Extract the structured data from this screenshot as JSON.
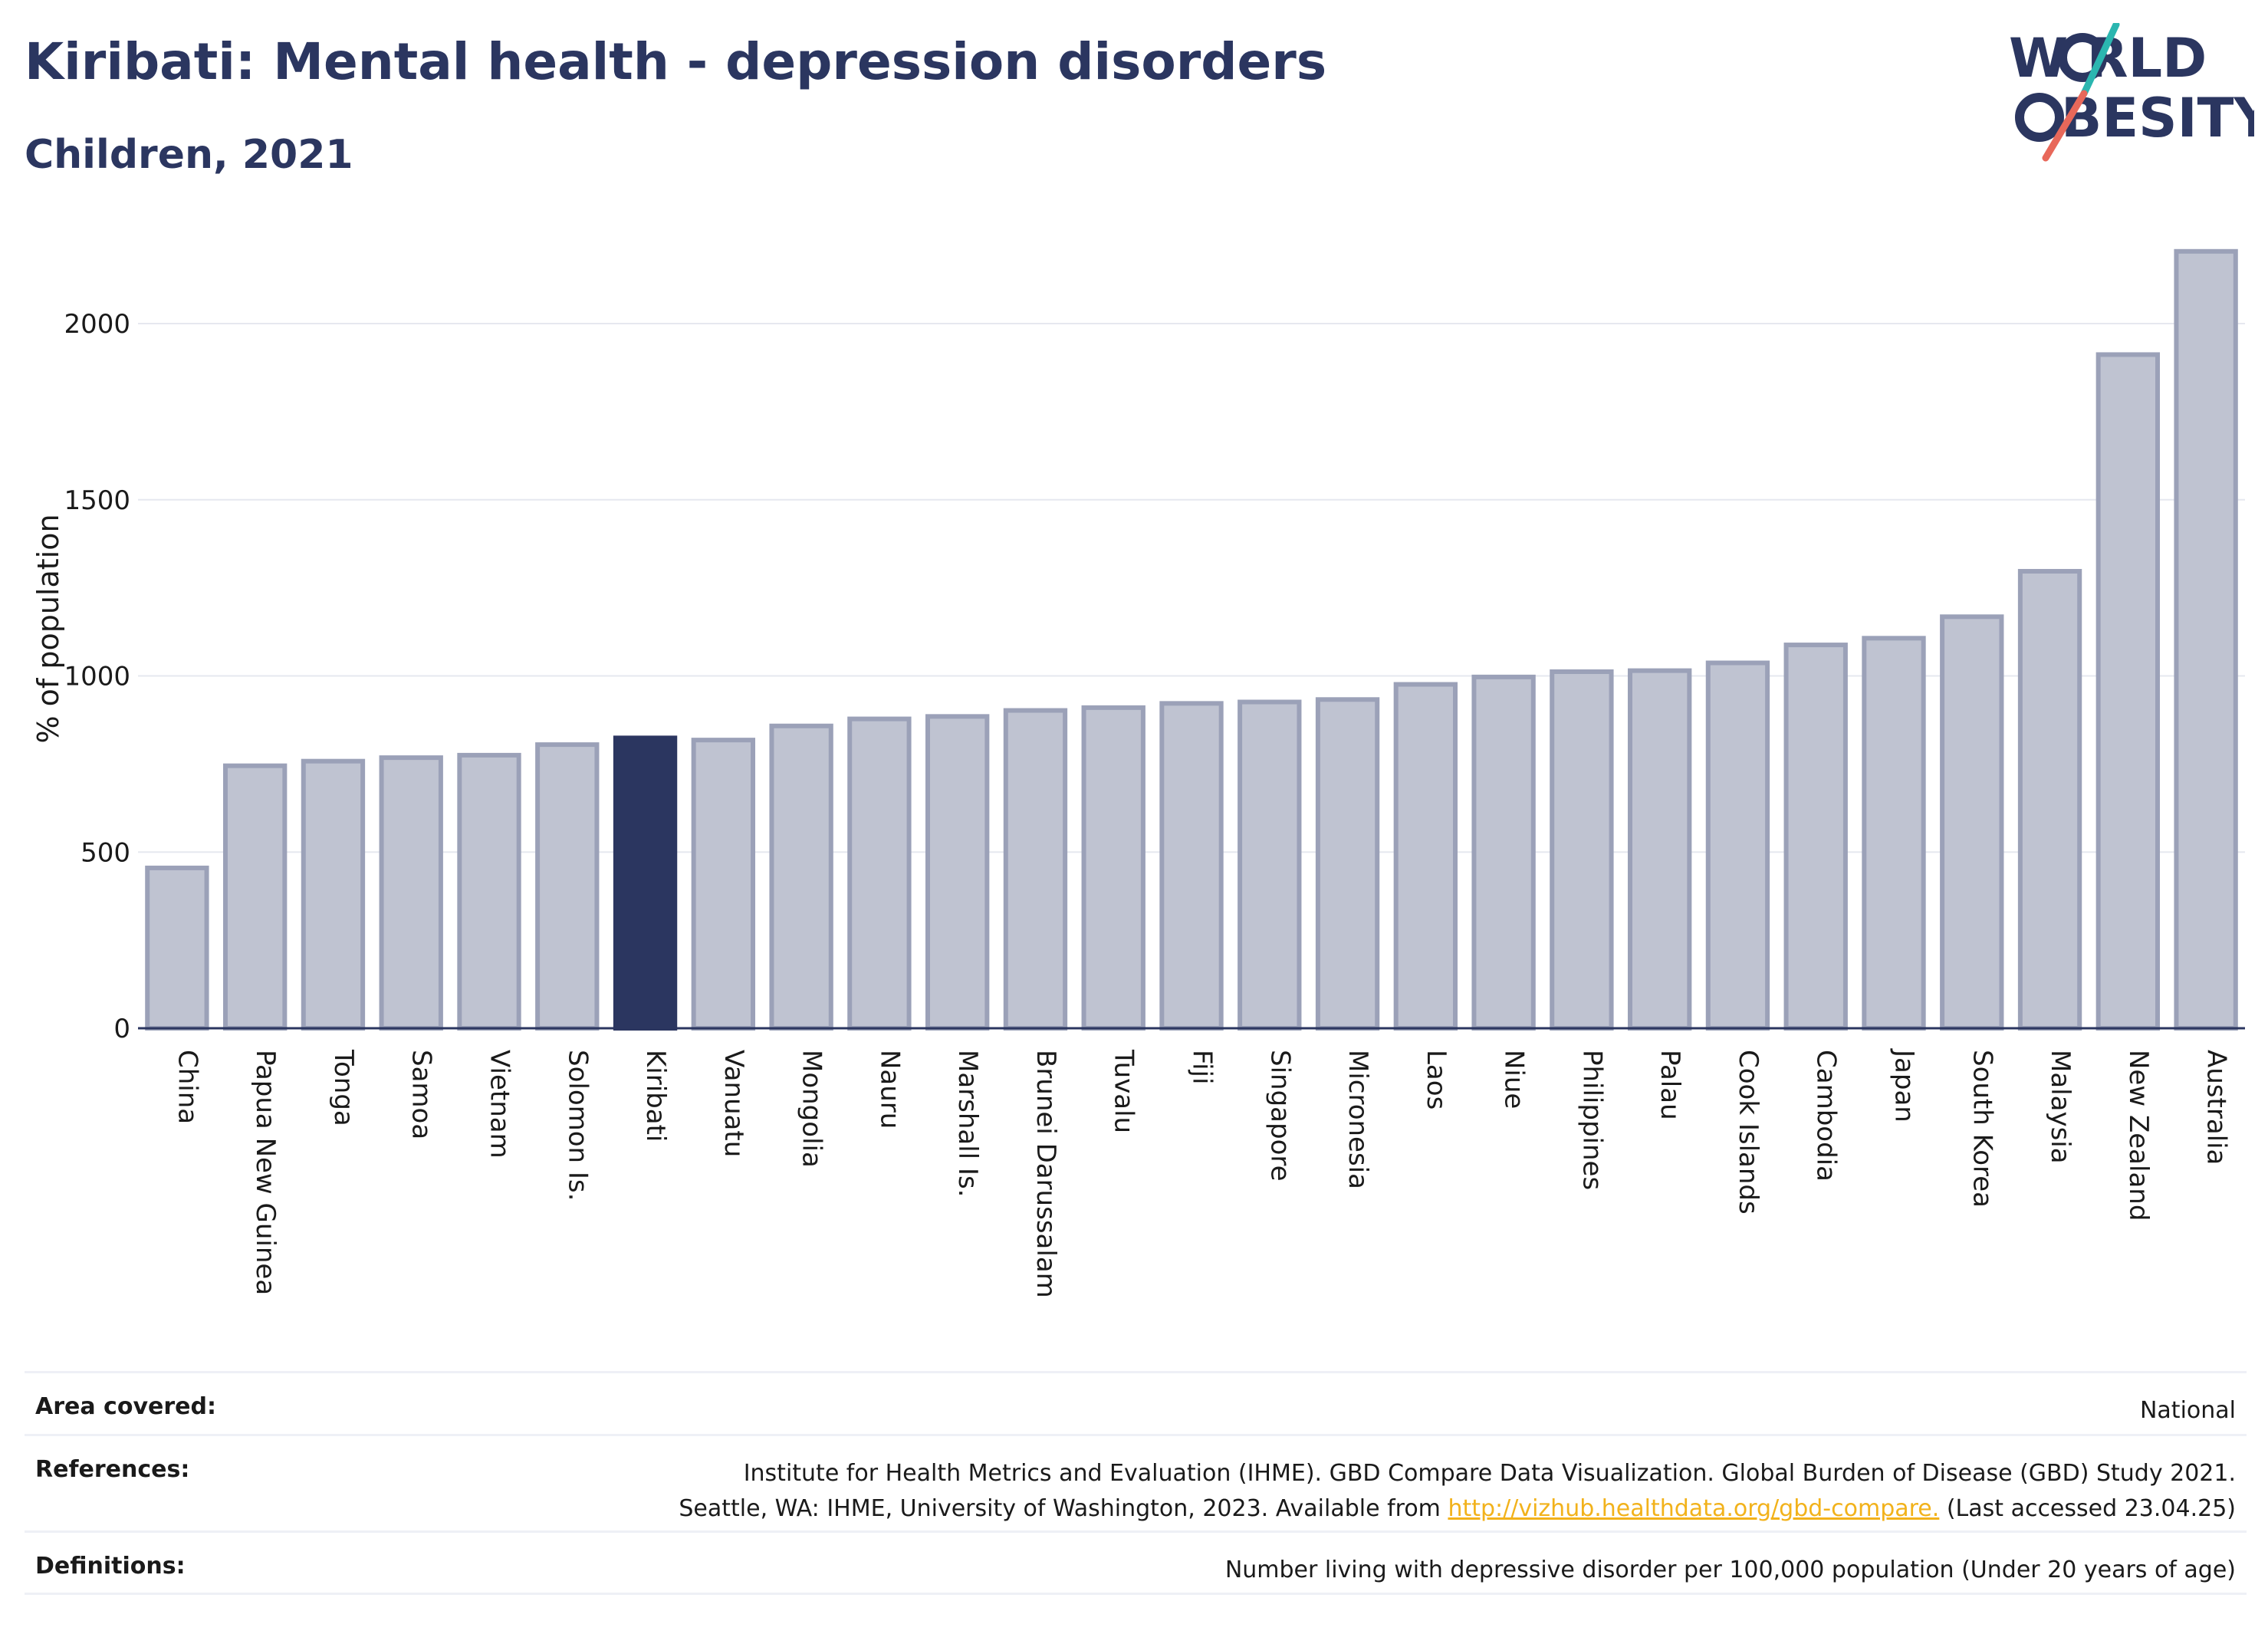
{
  "header": {
    "title": "Kiribati: Mental health - depression disorders",
    "subtitle": "Children, 2021"
  },
  "logo": {
    "line1": "W RLD",
    "line2": "BESITY",
    "accent_teal": "#2bb6b0",
    "accent_coral": "#e8685a"
  },
  "colors": {
    "highlight": "#2b3660",
    "bar_fill": "#bfc3d1",
    "bar_stroke": "#9ba1b8",
    "grid": "#e6e8ef",
    "axis": "#2b3660"
  },
  "chart_data": {
    "type": "bar",
    "ylabel": "% of population",
    "ylim": [
      0,
      2200
    ],
    "yticks": [
      0,
      500,
      1000,
      1500,
      2000
    ],
    "grid": true,
    "highlight": "Kiribati",
    "categories": [
      "China",
      "Papua New Guinea",
      "Tonga",
      "Samoa",
      "Vietnam",
      "Solomon Is.",
      "Kiribati",
      "Vanuatu",
      "Mongolia",
      "Nauru",
      "Marshall Is.",
      "Brunei Darussalam",
      "Tuvalu",
      "Fiji",
      "Singapore",
      "Micronesia",
      "Laos",
      "Niue",
      "Philippines",
      "Palau",
      "Cook Islands",
      "Cambodia",
      "Japan",
      "South Korea",
      "Malaysia",
      "New Zealand",
      "Australia"
    ],
    "values": [
      455,
      745,
      758,
      768,
      775,
      805,
      824,
      818,
      858,
      878,
      885,
      902,
      910,
      922,
      926,
      933,
      976,
      997,
      1012,
      1015,
      1037,
      1088,
      1107,
      1168,
      1297,
      1912,
      2205
    ]
  },
  "footer": {
    "area_label": "Area covered:",
    "area_value": "National",
    "references_label": "References:",
    "references_line1": "Institute for Health Metrics and Evaluation (IHME). GBD Compare Data Visualization. Global Burden of Disease (GBD) Study 2021.",
    "references_line2_pre": "Seattle, WA: IHME, University of Washington, 2023. Available from ",
    "references_link": "http://vizhub.healthdata.org/gbd-compare.",
    "references_line2_post": " (Last accessed 23.04.25)",
    "definitions_label": "Definitions:",
    "definitions_value": "Number living with depressive disorder per 100,000 population (Under 20 years of age)"
  }
}
